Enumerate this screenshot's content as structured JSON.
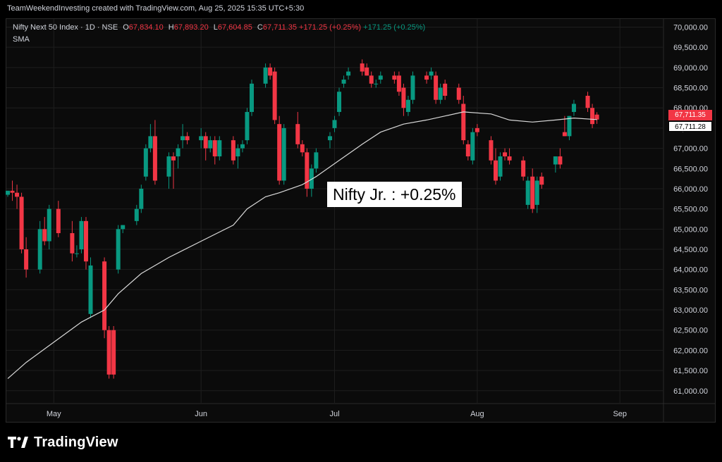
{
  "header": {
    "credit": "TeamWeekendInvesting created with TradingView.com, Aug 25, 2025 15:35 UTC+5:30"
  },
  "legend": {
    "symbol": "Nifty Next 50 Index · 1D · NSE",
    "o_label": "O",
    "o_value": "67,834.10",
    "h_label": "H",
    "h_value": "67,893.20",
    "l_label": "L",
    "l_value": "67,604.85",
    "c_label": "C",
    "c_value": "67,711.35",
    "change": "+171.25 (+0.25%)",
    "change2": "+171.25 (+0.25%)",
    "sma": "SMA"
  },
  "annotation": "Nifty Jr. : +0.25%",
  "price_tags": {
    "close": "67,711.35",
    "sma": "67,711.28"
  },
  "brand": {
    "name": "TradingView"
  },
  "colors": {
    "up": "#089981",
    "down": "#f23645",
    "sma": "#d9d9d9",
    "grid": "#1e1e1e"
  },
  "chart_data": {
    "type": "candlestick",
    "ylim": [
      60700,
      70200
    ],
    "y_ticks": [
      "70,000.00",
      "69,500.00",
      "69,000.00",
      "68,500.00",
      "68,000.00",
      "67,500.00",
      "67,000.00",
      "66,500.00",
      "66,000.00",
      "65,500.00",
      "65,000.00",
      "64,500.00",
      "64,000.00",
      "63,500.00",
      "63,000.00",
      "62,500.00",
      "62,000.00",
      "61,500.00",
      "61,000.00"
    ],
    "y_tick_values": [
      70000,
      69500,
      69000,
      68500,
      68000,
      67500,
      67000,
      66500,
      66000,
      65500,
      65000,
      64500,
      64000,
      63500,
      63000,
      62500,
      62000,
      61500,
      61000
    ],
    "x_labels": [
      "May",
      "Jun",
      "Jul",
      "Aug",
      "Sep"
    ],
    "x_label_dates": [
      "2025-05-01",
      "2025-06-02",
      "2025-07-01",
      "2025-08-01",
      "2025-09-01"
    ],
    "candles": [
      [
        "2025-04-21",
        65850,
        65950,
        65800,
        65950
      ],
      [
        "2025-04-22",
        65950,
        66200,
        65700,
        65900
      ],
      [
        "2025-04-23",
        65900,
        66100,
        65500,
        65800
      ],
      [
        "2025-04-24",
        65800,
        65900,
        64400,
        64500
      ],
      [
        "2025-04-25",
        64500,
        64800,
        63800,
        64000
      ],
      [
        "2025-04-28",
        64000,
        65200,
        63900,
        65000
      ],
      [
        "2025-04-29",
        65000,
        65300,
        64600,
        64700
      ],
      [
        "2025-04-30",
        64700,
        65600,
        64500,
        65500
      ],
      [
        "2025-05-02",
        65500,
        65700,
        64800,
        64900
      ],
      [
        "2025-05-05",
        64900,
        65200,
        64200,
        64400
      ],
      [
        "2025-05-06",
        64400,
        64600,
        64300,
        64400
      ],
      [
        "2025-05-07",
        64500,
        65300,
        64400,
        65200
      ],
      [
        "2025-05-08",
        65200,
        65300,
        64000,
        64200
      ],
      [
        "2025-05-09",
        62900,
        64300,
        62800,
        64100
      ],
      [
        "2025-05-12",
        64200,
        64300,
        62300,
        62500
      ],
      [
        "2025-05-13",
        62500,
        62600,
        61300,
        61400
      ],
      [
        "2025-05-14",
        62500,
        62600,
        61300,
        61400
      ],
      [
        "2025-05-15",
        64000,
        65100,
        63900,
        65000
      ],
      [
        "2025-05-16",
        65000,
        65100,
        64900,
        65100
      ],
      [
        "2025-05-19",
        65200,
        65600,
        65100,
        65500
      ],
      [
        "2025-05-20",
        65500,
        66100,
        65400,
        66000
      ],
      [
        "2025-05-21",
        66300,
        67100,
        66200,
        67000
      ],
      [
        "2025-05-22",
        67000,
        67600,
        66900,
        67300
      ],
      [
        "2025-05-23",
        67300,
        67700,
        66100,
        66200
      ],
      [
        "2025-05-26",
        66300,
        66900,
        66000,
        66800
      ],
      [
        "2025-05-27",
        66800,
        66900,
        66000,
        66700
      ],
      [
        "2025-05-28",
        66800,
        67100,
        66500,
        67000
      ],
      [
        "2025-05-29",
        67200,
        67600,
        67000,
        67300
      ],
      [
        "2025-05-30",
        67300,
        67400,
        67100,
        67200
      ],
      [
        "2025-06-02",
        67200,
        67500,
        67000,
        67300
      ],
      [
        "2025-06-03",
        67300,
        67400,
        66700,
        67000
      ],
      [
        "2025-06-04",
        67000,
        67300,
        66900,
        67200
      ],
      [
        "2025-06-05",
        67200,
        67300,
        66600,
        66800
      ],
      [
        "2025-06-06",
        66800,
        67300,
        66700,
        67200
      ],
      [
        "2025-06-09",
        67200,
        67300,
        66600,
        66700
      ],
      [
        "2025-06-10",
        66800,
        67100,
        66500,
        67000
      ],
      [
        "2025-06-11",
        67000,
        67200,
        66900,
        67100
      ],
      [
        "2025-06-12",
        67200,
        68000,
        67100,
        67900
      ],
      [
        "2025-06-13",
        67900,
        68700,
        67800,
        68600
      ],
      [
        "2025-06-16",
        68600,
        69100,
        68500,
        69000
      ],
      [
        "2025-06-17",
        69000,
        69100,
        68700,
        68800
      ],
      [
        "2025-06-18",
        68900,
        69000,
        67600,
        67700
      ],
      [
        "2025-06-19",
        67600,
        67800,
        66100,
        66200
      ],
      [
        "2025-06-20",
        66200,
        67600,
        66100,
        67500
      ],
      [
        "2025-06-23",
        67600,
        67900,
        67000,
        67100
      ],
      [
        "2025-06-24",
        67100,
        67200,
        66800,
        66900
      ],
      [
        "2025-06-25",
        66900,
        67000,
        65800,
        66000
      ],
      [
        "2025-06-26",
        66000,
        66600,
        65800,
        66500
      ],
      [
        "2025-06-27",
        66500,
        67000,
        66400,
        66900
      ],
      [
        "2025-06-30",
        67200,
        67400,
        67000,
        67300
      ],
      [
        "2025-07-01",
        67500,
        67800,
        67400,
        67700
      ],
      [
        "2025-07-02",
        67900,
        68500,
        67800,
        68400
      ],
      [
        "2025-07-03",
        68600,
        68800,
        68500,
        68700
      ],
      [
        "2025-07-04",
        68800,
        69000,
        68700,
        68900
      ],
      [
        "2025-07-07",
        69100,
        69200,
        68800,
        68900
      ],
      [
        "2025-07-08",
        69000,
        69100,
        68800,
        68800
      ],
      [
        "2025-07-09",
        68800,
        68900,
        68500,
        68600
      ],
      [
        "2025-07-10",
        68600,
        68700,
        68500,
        68600
      ],
      [
        "2025-07-11",
        68700,
        68900,
        68600,
        68800
      ],
      [
        "2025-07-14",
        68800,
        68900,
        68600,
        68700
      ],
      [
        "2025-07-15",
        68800,
        68900,
        68300,
        68400
      ],
      [
        "2025-07-16",
        68500,
        68600,
        67800,
        68000
      ],
      [
        "2025-07-17",
        67900,
        68300,
        67800,
        68200
      ],
      [
        "2025-07-18",
        68200,
        68900,
        68100,
        68800
      ],
      [
        "2025-07-21",
        68800,
        68900,
        68600,
        68700
      ],
      [
        "2025-07-22",
        68800,
        69000,
        68700,
        68900
      ],
      [
        "2025-07-23",
        68800,
        68900,
        68100,
        68200
      ],
      [
        "2025-07-24",
        68200,
        68600,
        68100,
        68500
      ],
      [
        "2025-07-25",
        68600,
        68700,
        68200,
        68300
      ],
      [
        "2025-07-28",
        68500,
        68600,
        68100,
        68200
      ],
      [
        "2025-07-29",
        68100,
        68300,
        67100,
        67200
      ],
      [
        "2025-07-30",
        67100,
        67200,
        66700,
        66800
      ],
      [
        "2025-07-31",
        66700,
        67500,
        66600,
        67400
      ],
      [
        "2025-08-01",
        67500,
        67600,
        67300,
        67400
      ],
      [
        "2025-08-04",
        67200,
        67300,
        66600,
        66700
      ],
      [
        "2025-08-05",
        66700,
        67000,
        66100,
        66200
      ],
      [
        "2025-08-06",
        66300,
        66900,
        66200,
        66800
      ],
      [
        "2025-08-07",
        66900,
        67000,
        66700,
        66800
      ],
      [
        "2025-08-08",
        66800,
        67000,
        66600,
        66700
      ],
      [
        "2025-08-11",
        66700,
        66800,
        66200,
        66300
      ],
      [
        "2025-08-12",
        65600,
        66300,
        65500,
        66200
      ],
      [
        "2025-08-13",
        66300,
        66500,
        65400,
        65500
      ],
      [
        "2025-08-14",
        65600,
        66300,
        65400,
        66200
      ],
      [
        "2025-08-15",
        66300,
        66400,
        66000,
        66100
      ],
      [
        "2025-08-18",
        66600,
        66800,
        66400,
        66800
      ],
      [
        "2025-08-19",
        66800,
        67000,
        66500,
        66600
      ],
      [
        "2025-08-20",
        67400,
        67800,
        67300,
        67300
      ],
      [
        "2025-08-21",
        67300,
        67800,
        67200,
        67800
      ],
      [
        "2025-08-22",
        67900,
        68200,
        67800,
        68100
      ],
      [
        "2025-08-25",
        68300,
        68400,
        67900,
        68000
      ],
      [
        "2025-08-26",
        68000,
        68100,
        67500,
        67600
      ],
      [
        "2025-08-27",
        67834.1,
        67893.2,
        67604.85,
        67711.35
      ]
    ],
    "sma_series": [
      [
        "2025-04-21",
        61300
      ],
      [
        "2025-04-25",
        61700
      ],
      [
        "2025-05-01",
        62200
      ],
      [
        "2025-05-07",
        62700
      ],
      [
        "2025-05-12",
        63000
      ],
      [
        "2025-05-15",
        63400
      ],
      [
        "2025-05-20",
        63900
      ],
      [
        "2025-05-26",
        64300
      ],
      [
        "2025-06-02",
        64700
      ],
      [
        "2025-06-09",
        65100
      ],
      [
        "2025-06-12",
        65500
      ],
      [
        "2025-06-16",
        65800
      ],
      [
        "2025-06-19",
        65900
      ],
      [
        "2025-06-24",
        66100
      ],
      [
        "2025-06-27",
        66300
      ],
      [
        "2025-07-02",
        66700
      ],
      [
        "2025-07-07",
        67100
      ],
      [
        "2025-07-11",
        67400
      ],
      [
        "2025-07-16",
        67600
      ],
      [
        "2025-07-21",
        67700
      ],
      [
        "2025-07-25",
        67800
      ],
      [
        "2025-07-29",
        67900
      ],
      [
        "2025-08-04",
        67850
      ],
      [
        "2025-08-08",
        67700
      ],
      [
        "2025-08-13",
        67650
      ],
      [
        "2025-08-18",
        67700
      ],
      [
        "2025-08-22",
        67750
      ],
      [
        "2025-08-27",
        67711.28
      ]
    ]
  }
}
